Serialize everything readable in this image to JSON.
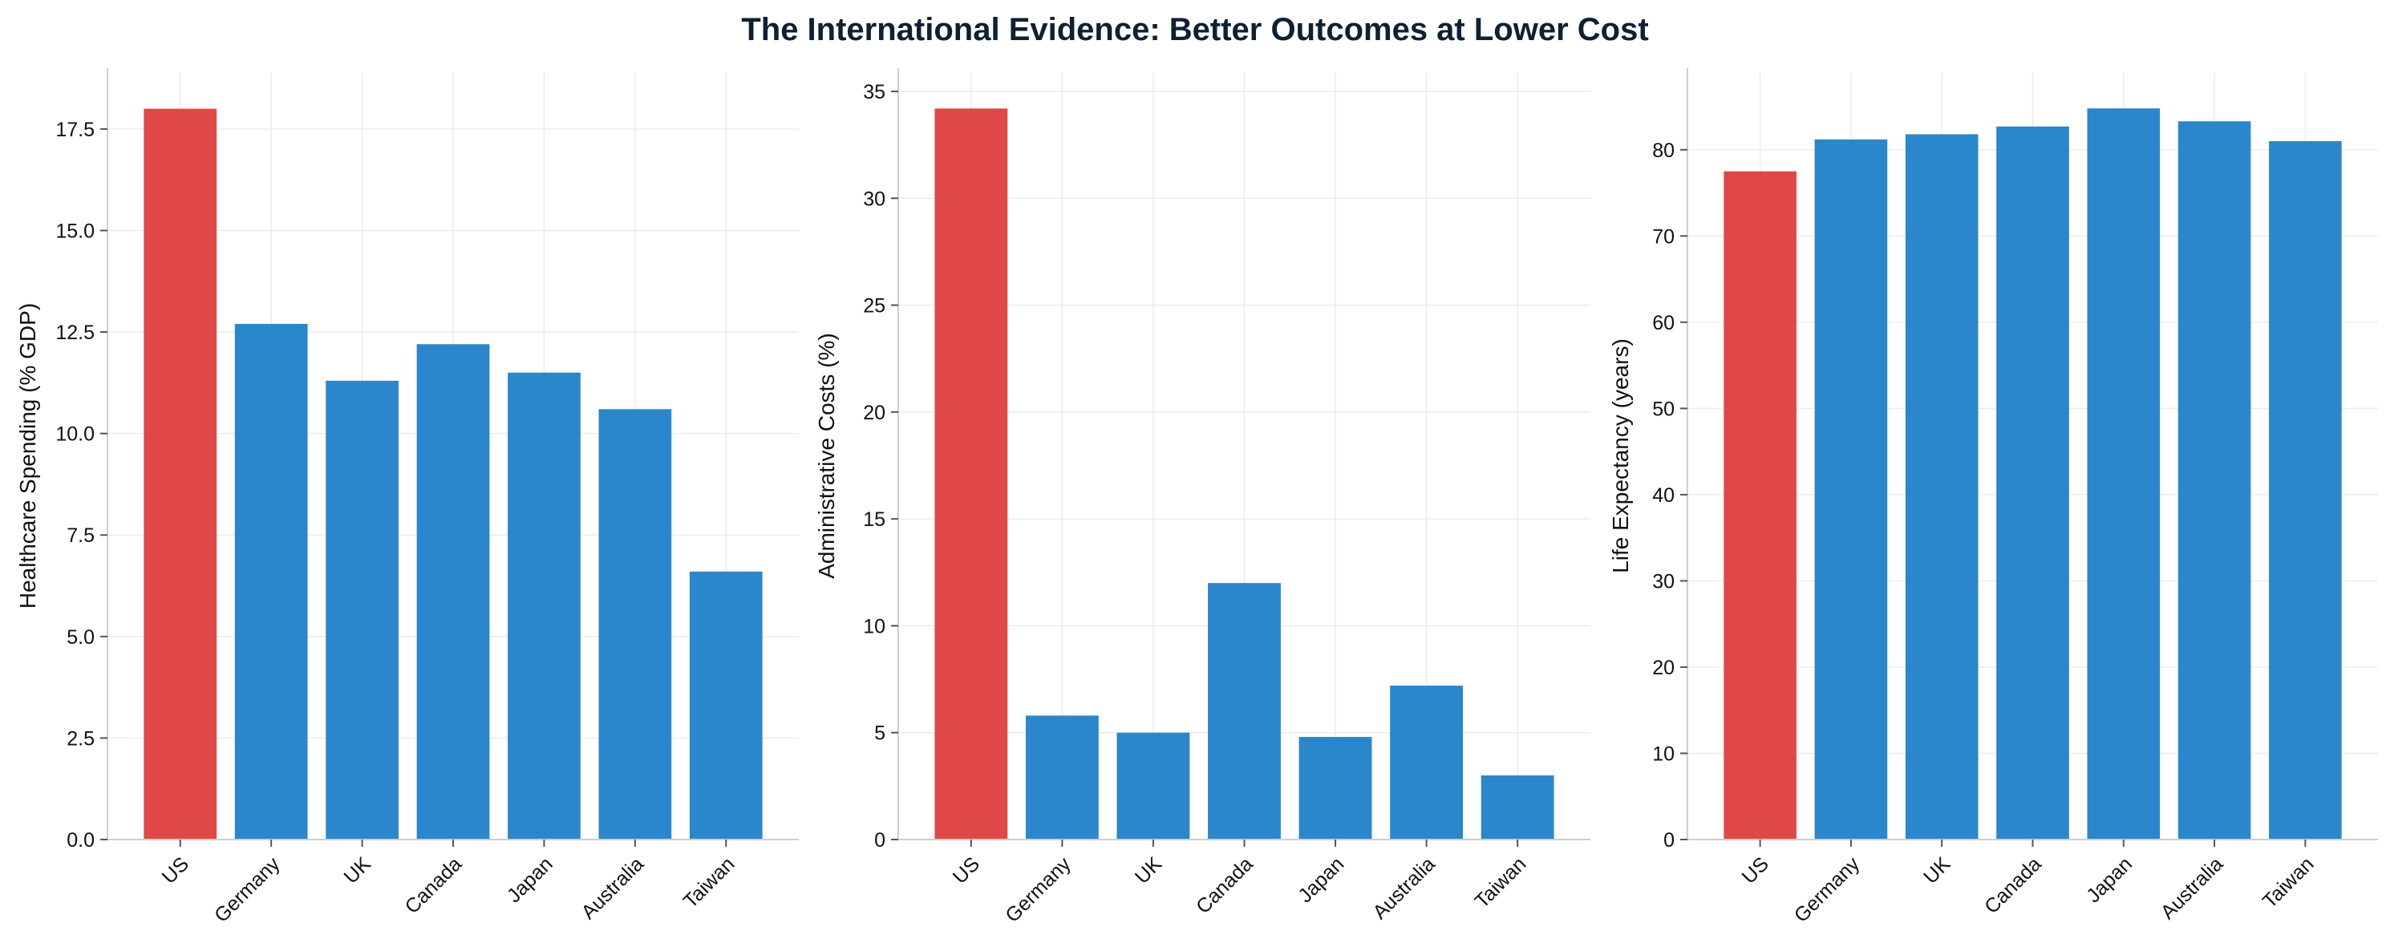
{
  "title": "The International Evidence: Better Outcomes at Lower Cost",
  "colors": {
    "highlight": "#e04848",
    "bar": "#2b87cb"
  },
  "chart_data": [
    {
      "type": "bar",
      "categories": [
        "US",
        "Germany",
        "UK",
        "Canada",
        "Japan",
        "Australia",
        "Taiwan"
      ],
      "values": [
        18.0,
        12.7,
        11.3,
        12.2,
        11.5,
        10.6,
        6.6
      ],
      "highlight": [
        "US"
      ],
      "xlabel": "",
      "ylabel": "Healthcare Spending (% GDP)",
      "ylim": [
        0,
        18.9
      ],
      "yticks": [
        0,
        2.5,
        5,
        7.5,
        10,
        12.5,
        15,
        17.5
      ],
      "ytick_labels": [
        "0.0",
        "2.5",
        "5.0",
        "7.5",
        "10.0",
        "12.5",
        "15.0",
        "17.5"
      ],
      "grid": true
    },
    {
      "type": "bar",
      "categories": [
        "US",
        "Germany",
        "UK",
        "Canada",
        "Japan",
        "Australia",
        "Taiwan"
      ],
      "values": [
        34.2,
        5.8,
        5.0,
        12.0,
        4.8,
        7.2,
        3.0
      ],
      "highlight": [
        "US"
      ],
      "xlabel": "",
      "ylabel": "Administrative Costs (%)",
      "ylim": [
        0,
        35.9
      ],
      "yticks": [
        0,
        5,
        10,
        15,
        20,
        25,
        30,
        35
      ],
      "ytick_labels": [
        "0",
        "5",
        "10",
        "15",
        "20",
        "25",
        "30",
        "35"
      ],
      "grid": true
    },
    {
      "type": "bar",
      "categories": [
        "US",
        "Germany",
        "UK",
        "Canada",
        "Japan",
        "Australia",
        "Taiwan"
      ],
      "values": [
        77.5,
        81.2,
        81.8,
        82.7,
        84.8,
        83.3,
        81.0
      ],
      "highlight": [
        "US"
      ],
      "xlabel": "",
      "ylabel": "Life Expectancy (years)",
      "ylim": [
        0,
        89
      ],
      "yticks": [
        0,
        10,
        20,
        30,
        40,
        50,
        60,
        70,
        80
      ],
      "ytick_labels": [
        "0",
        "10",
        "20",
        "30",
        "40",
        "50",
        "60",
        "70",
        "80"
      ],
      "grid": true
    }
  ]
}
